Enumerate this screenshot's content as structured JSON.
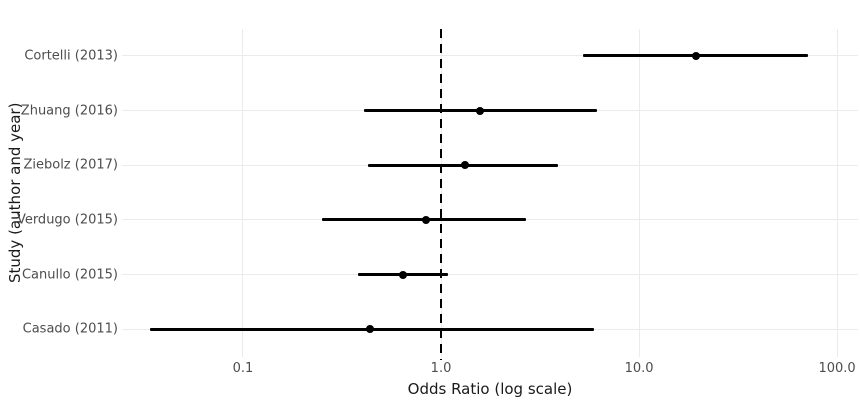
{
  "chart_data": {
    "type": "scatter",
    "subtype": "forest-plot",
    "title": "",
    "xlabel": "Odds Ratio (log scale)",
    "ylabel": "Study (author and year)",
    "x_scale": "log10",
    "xlim": [
      0.0245,
      127.5
    ],
    "x_ticks": [
      {
        "value": 0.1,
        "label": "0.1"
      },
      {
        "value": 1.0,
        "label": "1.0"
      },
      {
        "value": 10.0,
        "label": "10.0"
      },
      {
        "value": 100.0,
        "label": "100.0"
      }
    ],
    "reference_line": 1.0,
    "grid": "major",
    "legend": "none",
    "studies": [
      {
        "label": "Cortelli (2013)",
        "or": 19.5,
        "ci_low": 5.2,
        "ci_high": 71.0
      },
      {
        "label": "Zhuang (2016)",
        "or": 1.57,
        "ci_low": 0.41,
        "ci_high": 6.1
      },
      {
        "label": "Ziebolz (2017)",
        "or": 1.32,
        "ci_low": 0.43,
        "ci_high": 3.9
      },
      {
        "label": "Verdugo (2015)",
        "or": 0.84,
        "ci_low": 0.25,
        "ci_high": 2.7
      },
      {
        "label": "Canullo (2015)",
        "or": 0.64,
        "ci_low": 0.38,
        "ci_high": 1.08
      },
      {
        "label": "Casado (2011)",
        "or": 0.44,
        "ci_low": 0.034,
        "ci_high": 5.9
      }
    ],
    "colors": {
      "point": "#000000",
      "ci_line": "#000000",
      "reference_line": "#000000",
      "grid": "#ebebeb",
      "axis_text": "#4d4d4d",
      "axis_title": "#1a1a1a",
      "background": "#ffffff"
    }
  }
}
